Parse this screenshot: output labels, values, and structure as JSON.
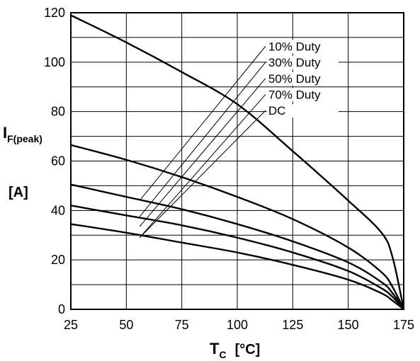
{
  "chart_data": {
    "type": "line",
    "title": "",
    "xlabel": {
      "main": "T",
      "sub": "C",
      "unit": "[°C]"
    },
    "ylabel": {
      "main": "I",
      "sub": "F(peak)",
      "unit": "[A]"
    },
    "xlim": [
      25,
      175
    ],
    "ylim": [
      0,
      120
    ],
    "x_ticks": [
      "25",
      "50",
      "75",
      "100",
      "125",
      "150",
      "175"
    ],
    "y_ticks": [
      "0",
      "20",
      "40",
      "60",
      "80",
      "100",
      "120"
    ],
    "grid": true,
    "legend_position": "top-right",
    "series": [
      {
        "name": "10% Duty",
        "x": [
          25,
          50,
          75,
          100,
          125,
          150,
          165,
          170,
          175
        ],
        "y": [
          119,
          108,
          96,
          83,
          64,
          44,
          31,
          21,
          0
        ]
      },
      {
        "name": "30% Duty",
        "x": [
          25,
          50,
          75,
          100,
          125,
          150,
          165,
          170,
          175
        ],
        "y": [
          66.5,
          60.5,
          53.5,
          45.5,
          36.5,
          25,
          15,
          9,
          0
        ]
      },
      {
        "name": "50% Duty",
        "x": [
          25,
          50,
          75,
          100,
          125,
          150,
          165,
          170,
          175
        ],
        "y": [
          50.5,
          45.5,
          40.5,
          34.5,
          27.5,
          19,
          11,
          6.5,
          0
        ]
      },
      {
        "name": "70% Duty",
        "x": [
          25,
          50,
          75,
          100,
          125,
          150,
          165,
          170,
          175
        ],
        "y": [
          42,
          38,
          34,
          29,
          23,
          15.5,
          8.5,
          5,
          0
        ]
      },
      {
        "name": "DC",
        "x": [
          25,
          50,
          75,
          100,
          125,
          150,
          165,
          170,
          175
        ],
        "y": [
          34.5,
          31,
          27,
          23,
          18,
          12,
          6.5,
          3.5,
          0
        ]
      }
    ]
  }
}
